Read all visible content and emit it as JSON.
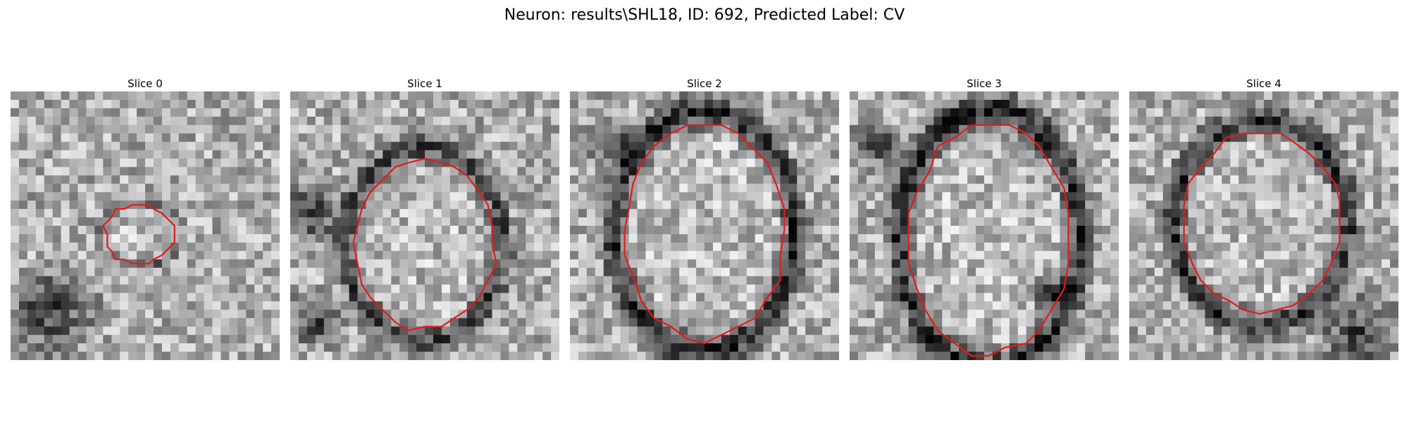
{
  "figure": {
    "title": "Neuron: results\\SHL18, ID: 692, Predicted Label: CV"
  },
  "panels": [
    {
      "title": "Slice 0"
    },
    {
      "title": "Slice 1"
    },
    {
      "title": "Slice 2"
    },
    {
      "title": "Slice 3"
    },
    {
      "title": "Slice 4"
    }
  ],
  "colors": {
    "contour": "#e41a1c",
    "image_colormap": "grayscale"
  }
}
